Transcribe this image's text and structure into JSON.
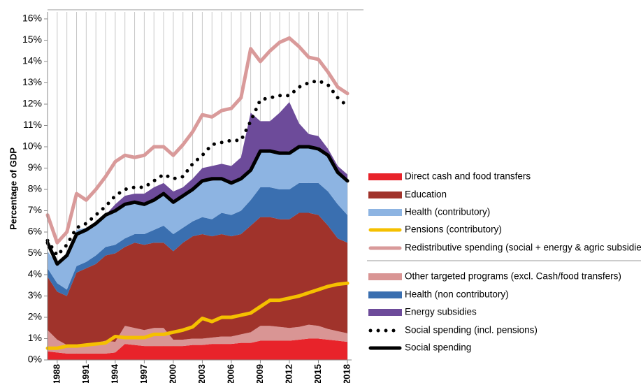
{
  "chart_data": {
    "type": "stacked-area-line",
    "y_label": "Percentage of GDP",
    "x": [
      1987,
      1988,
      1989,
      1990,
      1991,
      1992,
      1993,
      1994,
      1995,
      1996,
      1997,
      1998,
      1999,
      2000,
      2001,
      2002,
      2003,
      2004,
      2005,
      2006,
      2007,
      2008,
      2009,
      2010,
      2011,
      2012,
      2013,
      2014,
      2015,
      2016,
      2017,
      2018
    ],
    "xlim": [
      1987,
      2018
    ],
    "xticks": [
      1988,
      1991,
      1994,
      1997,
      2000,
      2003,
      2006,
      2009,
      2012,
      2015,
      2018
    ],
    "ylim": [
      0,
      16
    ],
    "yticks": [
      {
        "value": 0,
        "label": "0%"
      },
      {
        "value": 1,
        "label": "1%"
      },
      {
        "value": 2,
        "label": "2%"
      },
      {
        "value": 3,
        "label": "3%"
      },
      {
        "value": 4,
        "label": "4%"
      },
      {
        "value": 5,
        "label": "5%"
      },
      {
        "value": 6,
        "label": "6%"
      },
      {
        "value": 7,
        "label": "7%"
      },
      {
        "value": 8,
        "label": "8%"
      },
      {
        "value": 9,
        "label": "9%"
      },
      {
        "value": 10,
        "label": "10%"
      },
      {
        "value": 11,
        "label": "11%"
      },
      {
        "value": 12,
        "label": "12%"
      },
      {
        "value": 13,
        "label": "13%"
      },
      {
        "value": 14,
        "label": "14%"
      },
      {
        "value": 15,
        "label": "15%"
      },
      {
        "value": 16,
        "label": "16%"
      }
    ],
    "series": [
      {
        "name": "Direct cash and food transfers",
        "kind": "area",
        "color": "#e8232a",
        "values": [
          0.4,
          0.35,
          0.3,
          0.3,
          0.3,
          0.3,
          0.3,
          0.35,
          0.75,
          0.7,
          0.65,
          0.65,
          0.65,
          0.65,
          0.65,
          0.7,
          0.7,
          0.75,
          0.75,
          0.75,
          0.8,
          0.8,
          0.9,
          0.9,
          0.9,
          0.9,
          0.95,
          1.0,
          1.0,
          0.95,
          0.9,
          0.85
        ]
      },
      {
        "name": "Other targeted programs (excl. Cash/food transfers)",
        "kind": "area",
        "color": "#d99594",
        "values": [
          1.0,
          0.6,
          0.4,
          0.3,
          0.4,
          0.5,
          0.6,
          0.5,
          0.85,
          0.8,
          0.75,
          0.85,
          0.85,
          0.3,
          0.3,
          0.3,
          0.3,
          0.3,
          0.35,
          0.35,
          0.4,
          0.5,
          0.7,
          0.7,
          0.65,
          0.6,
          0.6,
          0.65,
          0.6,
          0.5,
          0.45,
          0.4
        ]
      },
      {
        "name": "Education",
        "kind": "area",
        "color": "#a0332b",
        "values": [
          2.5,
          2.25,
          2.3,
          3.5,
          3.6,
          3.7,
          4.0,
          4.15,
          3.7,
          4.0,
          4.0,
          4.0,
          4.0,
          4.15,
          4.55,
          4.8,
          4.9,
          4.75,
          4.8,
          4.7,
          4.7,
          5.0,
          5.1,
          5.1,
          5.05,
          5.1,
          5.35,
          5.25,
          5.2,
          4.85,
          4.35,
          4.25
        ]
      },
      {
        "name": "Health (non contributory)",
        "kind": "area",
        "color": "#3a6fb0",
        "values": [
          0.4,
          0.4,
          0.3,
          0.3,
          0.3,
          0.4,
          0.4,
          0.4,
          0.4,
          0.4,
          0.5,
          0.6,
          0.8,
          0.8,
          0.7,
          0.7,
          0.8,
          0.8,
          1.0,
          1.0,
          1.1,
          1.2,
          1.4,
          1.4,
          1.4,
          1.4,
          1.4,
          1.4,
          1.5,
          1.6,
          1.6,
          1.3
        ]
      },
      {
        "name": "Health (contributory)",
        "kind": "area",
        "color": "#8db4e2",
        "values": [
          0.8,
          0.9,
          1.5,
          1.7,
          1.6,
          1.5,
          1.5,
          1.7,
          1.6,
          1.5,
          1.4,
          1.4,
          1.5,
          1.5,
          1.5,
          1.5,
          1.7,
          1.8,
          1.6,
          1.5,
          1.6,
          1.5,
          1.7,
          1.7,
          1.7,
          1.8,
          1.7,
          1.7,
          1.7,
          1.7,
          1.5,
          1.6
        ]
      },
      {
        "name": "Energy subsidies",
        "kind": "area",
        "color": "#6d4b9a",
        "values": [
          0,
          0,
          0,
          0,
          0,
          0,
          0,
          0.2,
          0.4,
          0.4,
          0.5,
          0.6,
          0.5,
          0.5,
          0.4,
          0.5,
          0.6,
          0.7,
          0.7,
          0.8,
          0.9,
          2.6,
          1.4,
          1.4,
          1.9,
          2.3,
          1.1,
          0.6,
          0.5,
          0.3,
          0.3,
          0.3
        ]
      },
      {
        "name": "Pensions (contributory)",
        "kind": "line",
        "color": "#f5c000",
        "values": [
          0.55,
          0.55,
          0.65,
          0.65,
          0.7,
          0.75,
          0.8,
          1.1,
          1.05,
          1.05,
          1.05,
          1.2,
          1.2,
          1.3,
          1.4,
          1.55,
          1.95,
          1.8,
          2.0,
          2.0,
          2.1,
          2.2,
          2.5,
          2.8,
          2.8,
          2.9,
          3.0,
          3.15,
          3.3,
          3.45,
          3.55,
          3.6
        ]
      },
      {
        "name": "Redistributive spending (social + energy & agric subsidies)",
        "kind": "line",
        "color": "#d99a9a",
        "values": [
          6.8,
          5.5,
          6.0,
          7.8,
          7.5,
          8.0,
          8.6,
          9.3,
          9.6,
          9.5,
          9.6,
          10.0,
          10.0,
          9.6,
          10.1,
          10.7,
          11.5,
          11.4,
          11.7,
          11.8,
          12.3,
          14.6,
          14.0,
          14.5,
          14.9,
          15.1,
          14.7,
          14.2,
          14.1,
          13.5,
          12.8,
          12.5
        ]
      },
      {
        "name": "Social spending (incl. pensions)",
        "kind": "dotted",
        "color": "#000000",
        "values": [
          5.6,
          4.9,
          5.4,
          6.2,
          6.4,
          6.8,
          7.2,
          7.7,
          8.0,
          8.1,
          8.1,
          8.4,
          8.7,
          8.5,
          8.6,
          9.2,
          9.6,
          10.1,
          10.2,
          10.3,
          10.3,
          11.2,
          12.2,
          12.3,
          12.4,
          12.4,
          12.8,
          13.0,
          13.1,
          12.9,
          12.3,
          11.9
        ]
      },
      {
        "name": "Social spending",
        "kind": "line",
        "color": "#000000",
        "values": [
          5.5,
          4.5,
          4.9,
          5.9,
          6.1,
          6.4,
          6.8,
          7.0,
          7.3,
          7.4,
          7.3,
          7.5,
          7.8,
          7.4,
          7.7,
          8.0,
          8.4,
          8.5,
          8.5,
          8.3,
          8.5,
          8.9,
          9.8,
          9.8,
          9.7,
          9.7,
          10.0,
          10.0,
          9.9,
          9.6,
          8.8,
          8.4
        ]
      }
    ]
  }
}
